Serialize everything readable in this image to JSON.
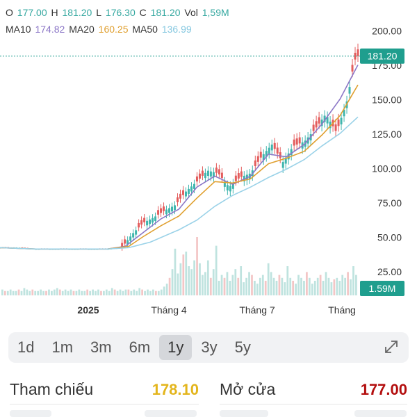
{
  "header": {
    "ohlc": {
      "o_label": "O",
      "o": "177.00",
      "h_label": "H",
      "h": "181.20",
      "l_label": "L",
      "l": "176.30",
      "c_label": "C",
      "c": "181.20",
      "vol_label": "Vol",
      "vol": "1,59M"
    },
    "ma": {
      "ma10_label": "MA10",
      "ma10": "174.82",
      "ma20_label": "MA20",
      "ma20": "160.25",
      "ma50_label": "MA50",
      "ma50": "136.99"
    }
  },
  "chart_data": {
    "type": "line",
    "series": [
      {
        "name": "price",
        "x": [
          0,
          5,
          10,
          15,
          20,
          25,
          30,
          34,
          37,
          40,
          43,
          46,
          49,
          52,
          55,
          58,
          61,
          64,
          67,
          70,
          73,
          76,
          79,
          82,
          85,
          88,
          91,
          94,
          97,
          99,
          100
        ],
        "values": [
          42,
          42,
          41,
          41,
          41,
          41,
          41,
          42,
          52,
          60,
          64,
          69,
          73,
          83,
          90,
          98,
          96,
          86,
          93,
          96,
          108,
          117,
          104,
          116,
          119,
          128,
          139,
          126,
          149,
          178,
          181.2
        ]
      },
      {
        "name": "MA10",
        "x": [
          0,
          10,
          20,
          30,
          35,
          40,
          45,
          50,
          55,
          60,
          65,
          70,
          75,
          80,
          85,
          90,
          95,
          100
        ],
        "values": [
          42,
          41,
          41,
          41,
          43,
          53,
          63,
          70,
          86,
          94,
          88,
          94,
          110,
          108,
          117,
          132,
          150,
          174.82
        ]
      },
      {
        "name": "MA20",
        "x": [
          0,
          10,
          20,
          30,
          36,
          40,
          45,
          50,
          55,
          60,
          65,
          70,
          75,
          80,
          85,
          90,
          95,
          100
        ],
        "values": [
          42,
          41,
          41,
          41,
          43,
          50,
          58,
          65,
          78,
          90,
          89,
          92,
          103,
          107,
          112,
          124,
          138,
          160.25
        ]
      },
      {
        "name": "MA50",
        "x": [
          0,
          10,
          20,
          30,
          36,
          42,
          50,
          55,
          60,
          65,
          70,
          75,
          80,
          85,
          90,
          95,
          100
        ],
        "values": [
          42,
          41,
          41,
          41,
          42,
          46,
          55,
          62,
          72,
          80,
          86,
          93,
          99,
          106,
          116,
          125,
          136.99
        ]
      }
    ],
    "volume": [
      4,
      3,
      3,
      4,
      3,
      3,
      4,
      3,
      5,
      4,
      3,
      4,
      3,
      3,
      4,
      3,
      3,
      4,
      3,
      4,
      5,
      4,
      3,
      4,
      3,
      4,
      3,
      3,
      4,
      3,
      3,
      4,
      3,
      4,
      3,
      4,
      3,
      3,
      4,
      3,
      5,
      4,
      3,
      4,
      3,
      4,
      4,
      3,
      4,
      3,
      5,
      4,
      3,
      4,
      3,
      4,
      3,
      3,
      4,
      6,
      8,
      12,
      18,
      32,
      15,
      22,
      28,
      30,
      20,
      18,
      24,
      40,
      22,
      14,
      16,
      24,
      12,
      18,
      34,
      10,
      14,
      12,
      16,
      10,
      14,
      18,
      12,
      20,
      9,
      12,
      16,
      14,
      10,
      8,
      12,
      14,
      10,
      22,
      16,
      12,
      10,
      14,
      12,
      9,
      20,
      12,
      10,
      8,
      14,
      12,
      10,
      16,
      12,
      8,
      10,
      12,
      14,
      10,
      16,
      12,
      9,
      11,
      12,
      10,
      14,
      12,
      16,
      11,
      20,
      14
    ],
    "y_ticks": [
      "200.00",
      "175.00",
      "150.00",
      "125.00",
      "100.00",
      "75.00",
      "50.00",
      "25.00"
    ],
    "x_ticks": [
      "2025",
      "Tháng 4",
      "Tháng 7",
      "Tháng"
    ],
    "last_price_label": "181.20",
    "last_volume_label": "1.59M",
    "ylim": [
      0,
      210
    ],
    "colors": {
      "up": "#3fb5ad",
      "down": "#e35d5d",
      "ma10": "#8b76c6",
      "ma20": "#e0a030",
      "ma50": "#9ad2e8",
      "axis_badge": "#1f9e8e"
    }
  },
  "timeframes": {
    "items": [
      "1d",
      "1m",
      "3m",
      "6m",
      "1y",
      "3y",
      "5y"
    ],
    "active": "1y"
  },
  "info": {
    "ref_label": "Tham chiếu",
    "ref_value": "178.10",
    "open_label": "Mở cửa",
    "open_value": "177.00"
  }
}
